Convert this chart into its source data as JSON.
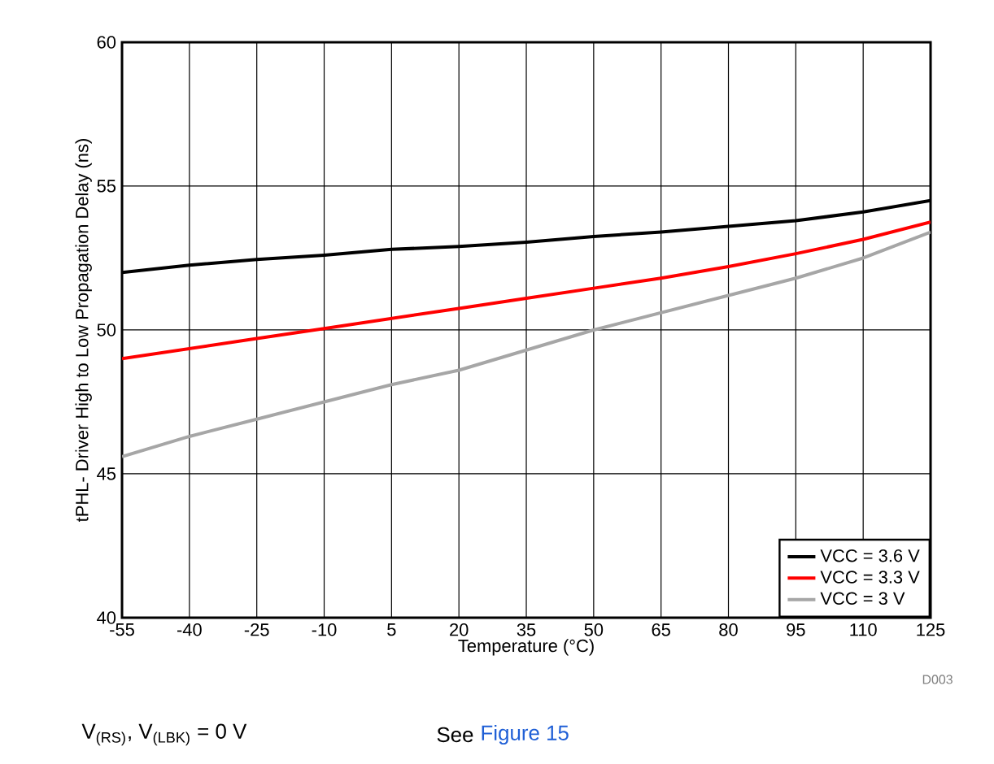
{
  "chart_data": {
    "type": "line",
    "xlabel": "Temperature (°C)",
    "ylabel": "tPHL- Driver High to Low Propagation Delay (ns)",
    "x": [
      -55,
      -40,
      -25,
      -10,
      5,
      20,
      35,
      50,
      65,
      80,
      95,
      110,
      125
    ],
    "series": [
      {
        "name": "VCC = 3.6 V",
        "color": "#000000",
        "values": [
          52.0,
          52.25,
          52.45,
          52.6,
          52.8,
          52.9,
          53.05,
          53.25,
          53.4,
          53.6,
          53.8,
          54.1,
          54.5
        ]
      },
      {
        "name": "VCC = 3.3 V",
        "color": "#ff0000",
        "values": [
          49.0,
          49.35,
          49.7,
          50.05,
          50.4,
          50.75,
          51.1,
          51.45,
          51.8,
          52.2,
          52.65,
          53.15,
          53.75
        ]
      },
      {
        "name": "VCC = 3 V",
        "color": "#a6a6a6",
        "values": [
          45.6,
          46.3,
          46.9,
          47.5,
          48.1,
          48.6,
          49.3,
          50.0,
          50.6,
          51.2,
          51.8,
          52.5,
          53.4
        ]
      }
    ],
    "xlim": [
      -55,
      125
    ],
    "xticks": [
      -55,
      -40,
      -25,
      -10,
      5,
      20,
      35,
      50,
      65,
      80,
      95,
      110,
      125
    ],
    "ylim": [
      40,
      60
    ],
    "yticks": [
      40,
      45,
      50,
      55,
      60
    ],
    "grid": true,
    "legend": "bottom right",
    "marker": "none",
    "line_style": "solid",
    "annotations": [
      "V$_{(RS)}$, V$_{(LBK)}$ = 0 V",
      "See",
      "Figure 15",
      "D003"
    ]
  }
}
